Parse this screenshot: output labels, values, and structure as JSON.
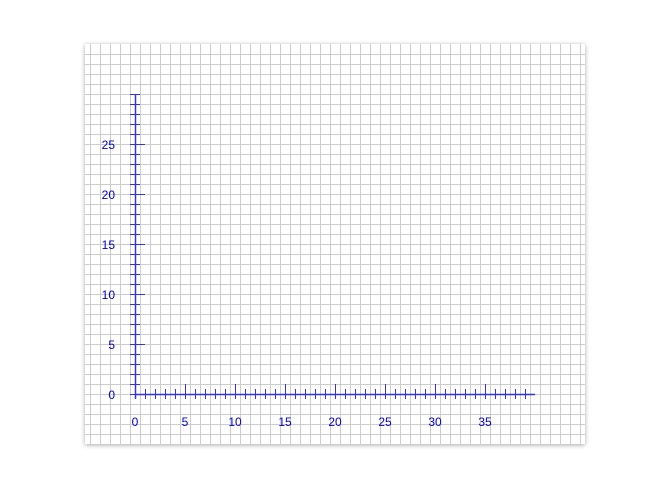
{
  "chart_data": {
    "type": "scatter",
    "title": "",
    "xlabel": "",
    "ylabel": "",
    "xlim": [
      0,
      40
    ],
    "ylim": [
      0,
      30
    ],
    "x_ticks": [
      0,
      5,
      10,
      15,
      20,
      25,
      30,
      35
    ],
    "y_ticks": [
      0,
      5,
      10,
      15,
      20,
      25
    ],
    "x_tick_labels": [
      "0",
      "5",
      "10",
      "15",
      "20",
      "25",
      "30",
      "35"
    ],
    "y_tick_labels": [
      "0",
      "5",
      "10",
      "15",
      "20",
      "25"
    ],
    "minor_tick_step": 1,
    "grid": true,
    "series": []
  },
  "colors": {
    "axis": "#3333dd",
    "tick_label": "#0000cc",
    "grid": "#cccccc",
    "paper": "#ffffff",
    "page": "#ffffff"
  }
}
